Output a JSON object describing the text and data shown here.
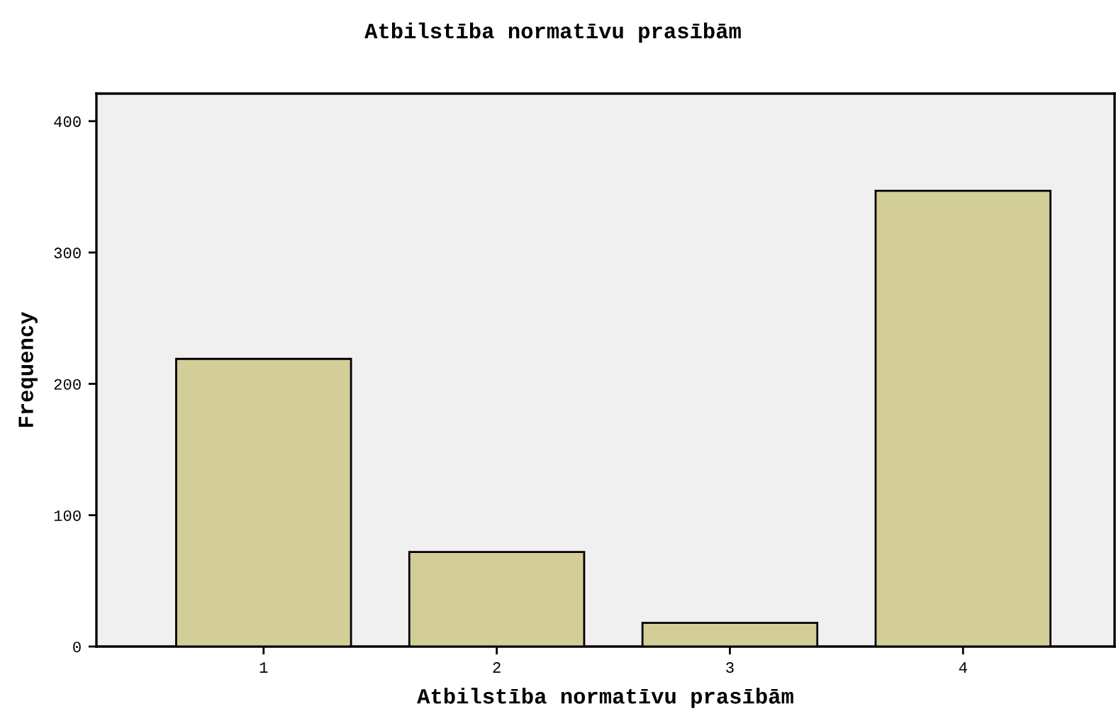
{
  "chart_data": {
    "type": "bar",
    "title": "Atbilstība normatīvu prasībām",
    "xlabel": "Atbilstība normatīvu prasībām",
    "ylabel": "Frequency",
    "categories": [
      "1",
      "2",
      "3",
      "4"
    ],
    "values": [
      219,
      72,
      18,
      347
    ],
    "color": "#d3ce98",
    "ylim": [
      0,
      421
    ],
    "yticks": [
      0,
      100,
      200,
      300,
      400
    ],
    "grid": false,
    "legend": false
  }
}
